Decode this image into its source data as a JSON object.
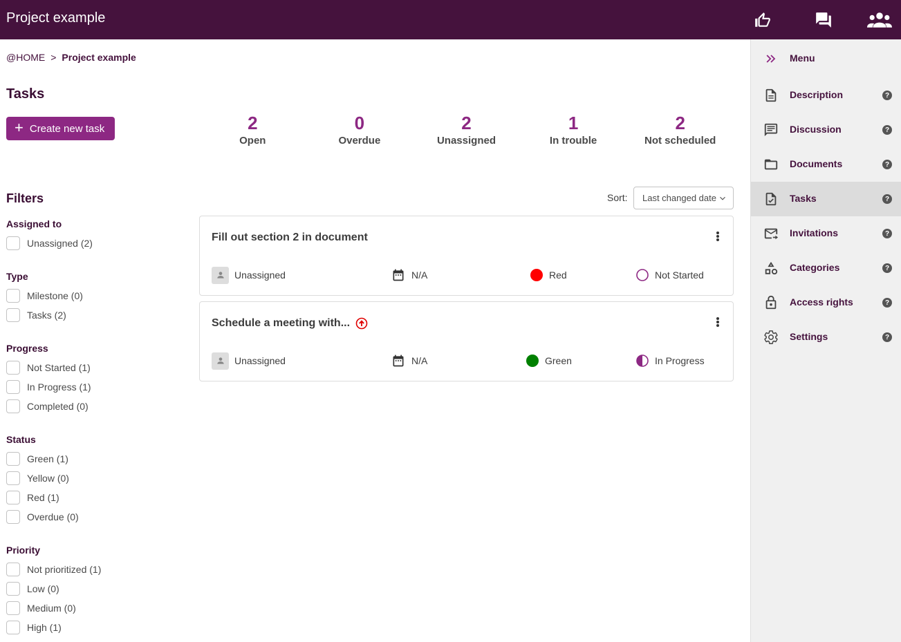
{
  "header": {
    "title": "Project example",
    "icons": [
      "thumbs-up-icon",
      "chat-icon",
      "people-icon"
    ]
  },
  "breadcrumb": {
    "home": "@HOME",
    "separator": ">",
    "current": "Project example"
  },
  "tasks_title": "Tasks",
  "create_button": {
    "label": "Create new task"
  },
  "stats": [
    {
      "value": "2",
      "label": "Open"
    },
    {
      "value": "0",
      "label": "Overdue"
    },
    {
      "value": "2",
      "label": "Unassigned"
    },
    {
      "value": "1",
      "label": "In trouble"
    },
    {
      "value": "2",
      "label": "Not scheduled"
    }
  ],
  "filters": {
    "title": "Filters",
    "groups": [
      {
        "title": "Assigned to",
        "items": [
          "Unassigned (2)"
        ]
      },
      {
        "title": "Type",
        "items": [
          "Milestone (0)",
          "Tasks (2)"
        ]
      },
      {
        "title": "Progress",
        "items": [
          "Not Started (1)",
          "In Progress (1)",
          "Completed (0)"
        ]
      },
      {
        "title": "Status",
        "items": [
          "Green (1)",
          "Yellow (0)",
          "Red (1)",
          "Overdue (0)"
        ]
      },
      {
        "title": "Priority",
        "items": [
          "Not prioritized (1)",
          "Low (0)",
          "Medium (0)",
          "High (1)"
        ]
      }
    ]
  },
  "sort": {
    "label": "Sort:",
    "value": "Last changed date"
  },
  "task_list": [
    {
      "title": "Fill out section 2 in document",
      "high_priority": false,
      "assignee": "Unassigned",
      "due": "N/A",
      "status": "Red",
      "status_color": "#ff0000",
      "progress": "Not Started"
    },
    {
      "title": "Schedule a meeting with...",
      "high_priority": true,
      "assignee": "Unassigned",
      "due": "N/A",
      "status": "Green",
      "status_color": "#008000",
      "progress": "In Progress"
    }
  ],
  "sidebar": {
    "items": [
      {
        "label": "Menu",
        "icon": "double-chevron-right-icon",
        "help": false
      },
      {
        "label": "Description",
        "icon": "document-icon",
        "help": true
      },
      {
        "label": "Discussion",
        "icon": "comment-icon",
        "help": true
      },
      {
        "label": "Documents",
        "icon": "folder-icon",
        "help": true
      },
      {
        "label": "Tasks",
        "icon": "task-file-icon",
        "help": true,
        "active": true
      },
      {
        "label": "Invitations",
        "icon": "mail-forward-icon",
        "help": true
      },
      {
        "label": "Categories",
        "icon": "shapes-icon",
        "help": true
      },
      {
        "label": "Access rights",
        "icon": "lock-icon",
        "help": true
      },
      {
        "label": "Settings",
        "icon": "gear-icon",
        "help": true
      }
    ],
    "help_glyph": "?"
  },
  "colors": {
    "header": "#45123d",
    "accent": "#8d2883",
    "red": "#ff0000",
    "green": "#008000"
  }
}
